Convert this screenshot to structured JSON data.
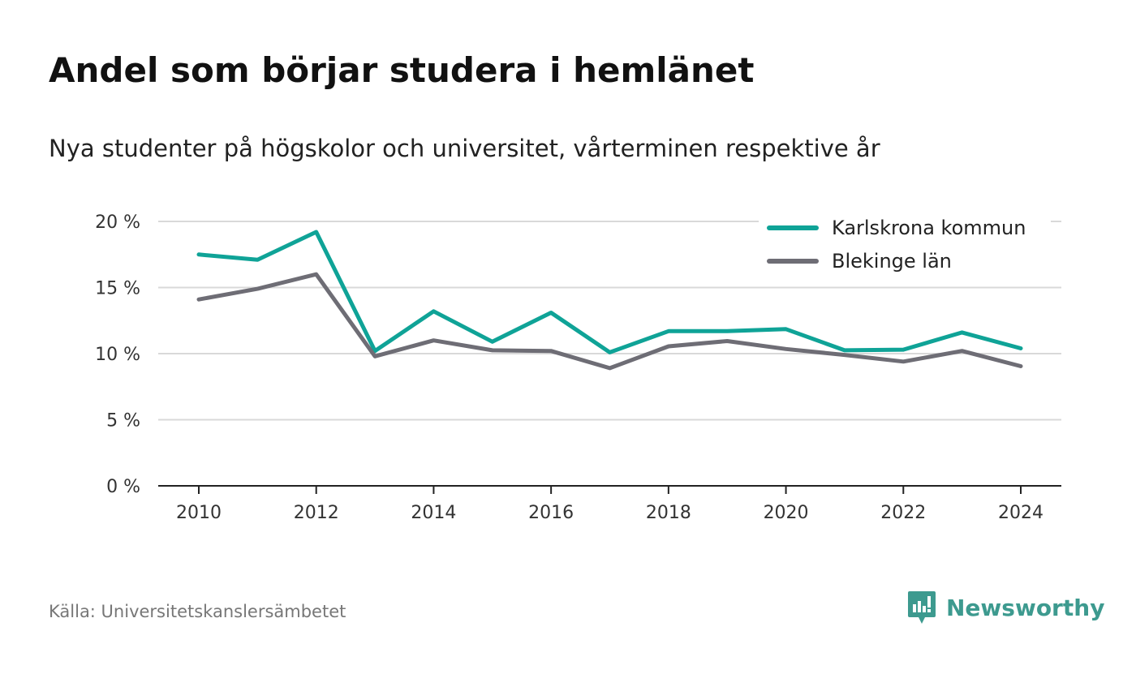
{
  "header": {
    "title": "Andel som börjar studera i hemlänet",
    "subtitle": "Nya studenter på högskolor och universitet, vårterminen respektive år"
  },
  "footer": {
    "source": "Källa: Universitetskanslersämbetet",
    "brand": "Newsworthy",
    "brand_icon": "newsworthy-logo-icon"
  },
  "colors": {
    "karlskrona": "#0fa397",
    "blekinge": "#6e6d75",
    "grid": "#d9d9d9",
    "axis": "#222222",
    "brand": "#3d9a8f"
  },
  "chart_data": {
    "type": "line",
    "x": [
      2010,
      2011,
      2012,
      2013,
      2014,
      2015,
      2016,
      2017,
      2018,
      2019,
      2020,
      2021,
      2022,
      2023,
      2024
    ],
    "series": [
      {
        "name": "Karlskrona kommun",
        "color": "#0fa397",
        "values": [
          17.5,
          17.1,
          19.2,
          10.2,
          13.2,
          10.9,
          13.1,
          10.1,
          11.7,
          11.7,
          11.85,
          10.25,
          10.3,
          11.6,
          10.4
        ]
      },
      {
        "name": "Blekinge län",
        "color": "#6e6d75",
        "values": [
          14.1,
          14.9,
          16.0,
          9.8,
          11.0,
          10.25,
          10.2,
          8.9,
          10.55,
          10.95,
          10.35,
          9.9,
          9.4,
          10.2,
          9.05
        ]
      }
    ],
    "yticks": [
      "0 %",
      "5 %",
      "10 %",
      "15 %",
      "20 %"
    ],
    "ytick_values": [
      0,
      5,
      10,
      15,
      20
    ],
    "xticks": [
      "2010",
      "2012",
      "2014",
      "2016",
      "2018",
      "2020",
      "2022",
      "2024"
    ],
    "xtick_values": [
      2010,
      2012,
      2014,
      2016,
      2018,
      2020,
      2022,
      2024
    ],
    "ylim": [
      0,
      20
    ],
    "xlim": [
      2010,
      2024
    ],
    "grid": true,
    "legend_position": "top-right"
  }
}
